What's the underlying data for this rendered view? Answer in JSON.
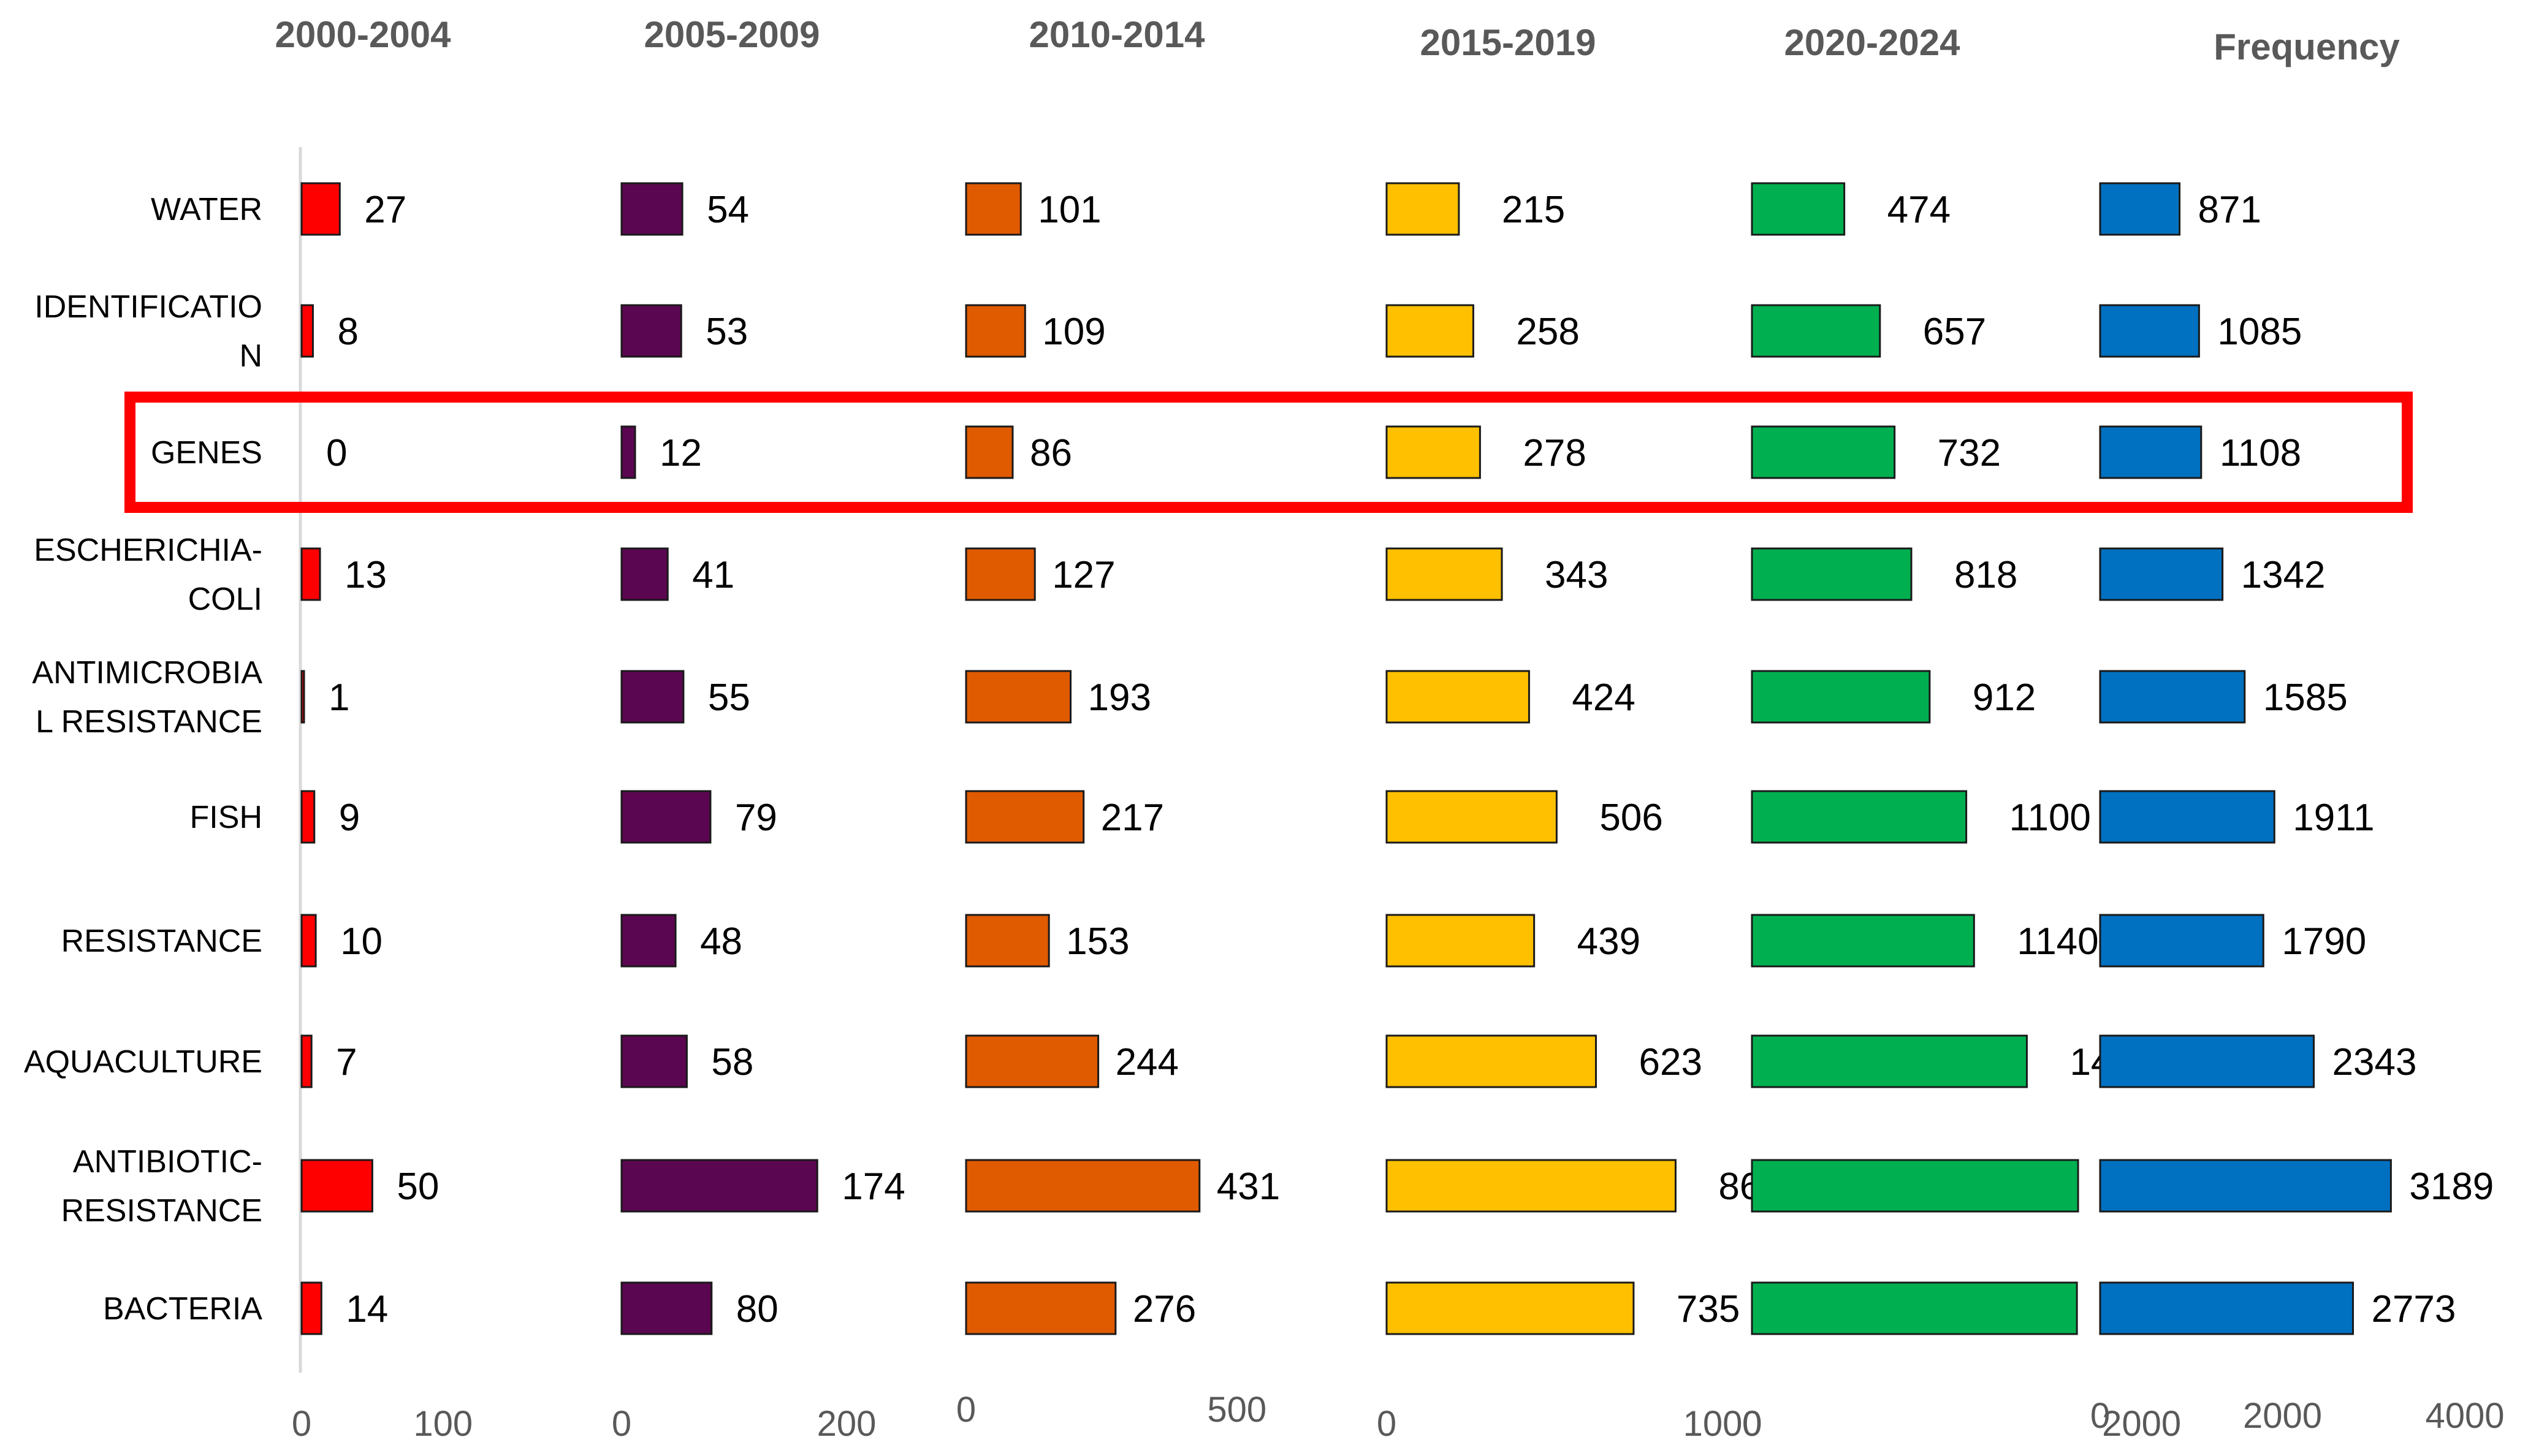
{
  "chart_data": {
    "type": "bar",
    "orientation": "horizontal",
    "categories": [
      "WATER",
      "IDENTIFICATION",
      "GENES",
      "ESCHERICHIA-COLI",
      "ANTIMICROBIAL RESISTANCE",
      "FISH",
      "RESISTANCE",
      "AQUACULTURE",
      "ANTIBIOTIC-RESISTANCE",
      "BACTERIA"
    ],
    "category_labels": [
      [
        "WATER"
      ],
      [
        "IDENTIFICATIO",
        "N"
      ],
      [
        "GENES"
      ],
      [
        "ESCHERICHIA-",
        "COLI"
      ],
      [
        "ANTIMICROBIA",
        "L RESISTANCE"
      ],
      [
        "FISH"
      ],
      [
        "RESISTANCE"
      ],
      [
        "AQUACULTURE"
      ],
      [
        "ANTIBIOTIC-",
        "RESISTANCE"
      ],
      [
        "BACTERIA"
      ]
    ],
    "highlighted_category": "GENES",
    "highlight_color": "#ff0000",
    "series": [
      {
        "name": "2000-2004",
        "color": "#ff0000",
        "xlim": [
          0,
          130
        ],
        "ticks": [
          0,
          100
        ],
        "values": [
          27,
          8,
          0,
          13,
          1,
          9,
          10,
          7,
          50,
          14
        ]
      },
      {
        "name": "2005-2009",
        "color": "#5b0650",
        "xlim": [
          0,
          230
        ],
        "ticks": [
          0,
          200
        ],
        "values": [
          54,
          53,
          12,
          41,
          55,
          79,
          48,
          58,
          174,
          80
        ]
      },
      {
        "name": "2010-2014",
        "color": "#e05a00",
        "xlim": [
          0,
          575
        ],
        "ticks": [
          0,
          500
        ],
        "values": [
          101,
          109,
          86,
          127,
          193,
          217,
          153,
          244,
          431,
          276
        ]
      },
      {
        "name": "2015-2019",
        "color": "#ffc000",
        "xlim": [
          0,
          1100
        ],
        "ticks": [
          0,
          1000
        ],
        "values": [
          215,
          258,
          278,
          343,
          424,
          506,
          439,
          623,
          860,
          735
        ]
      },
      {
        "name": "2020-2024",
        "color": "#00b050",
        "xlim": [
          0,
          2300
        ],
        "ticks": [
          0,
          2000
        ],
        "values": [
          474,
          657,
          732,
          818,
          912,
          1100,
          1140,
          1411,
          1674,
          1668
        ]
      },
      {
        "name": "Frequency",
        "color": "#0070c0",
        "xlim": [
          0,
          4000
        ],
        "ticks": [
          0,
          2000,
          4000
        ],
        "values": [
          871,
          1085,
          1108,
          1342,
          1585,
          1911,
          1790,
          2343,
          3189,
          2773
        ]
      }
    ],
    "title": "",
    "xlabel": "",
    "ylabel": "",
    "grid": false,
    "legend": "none"
  }
}
